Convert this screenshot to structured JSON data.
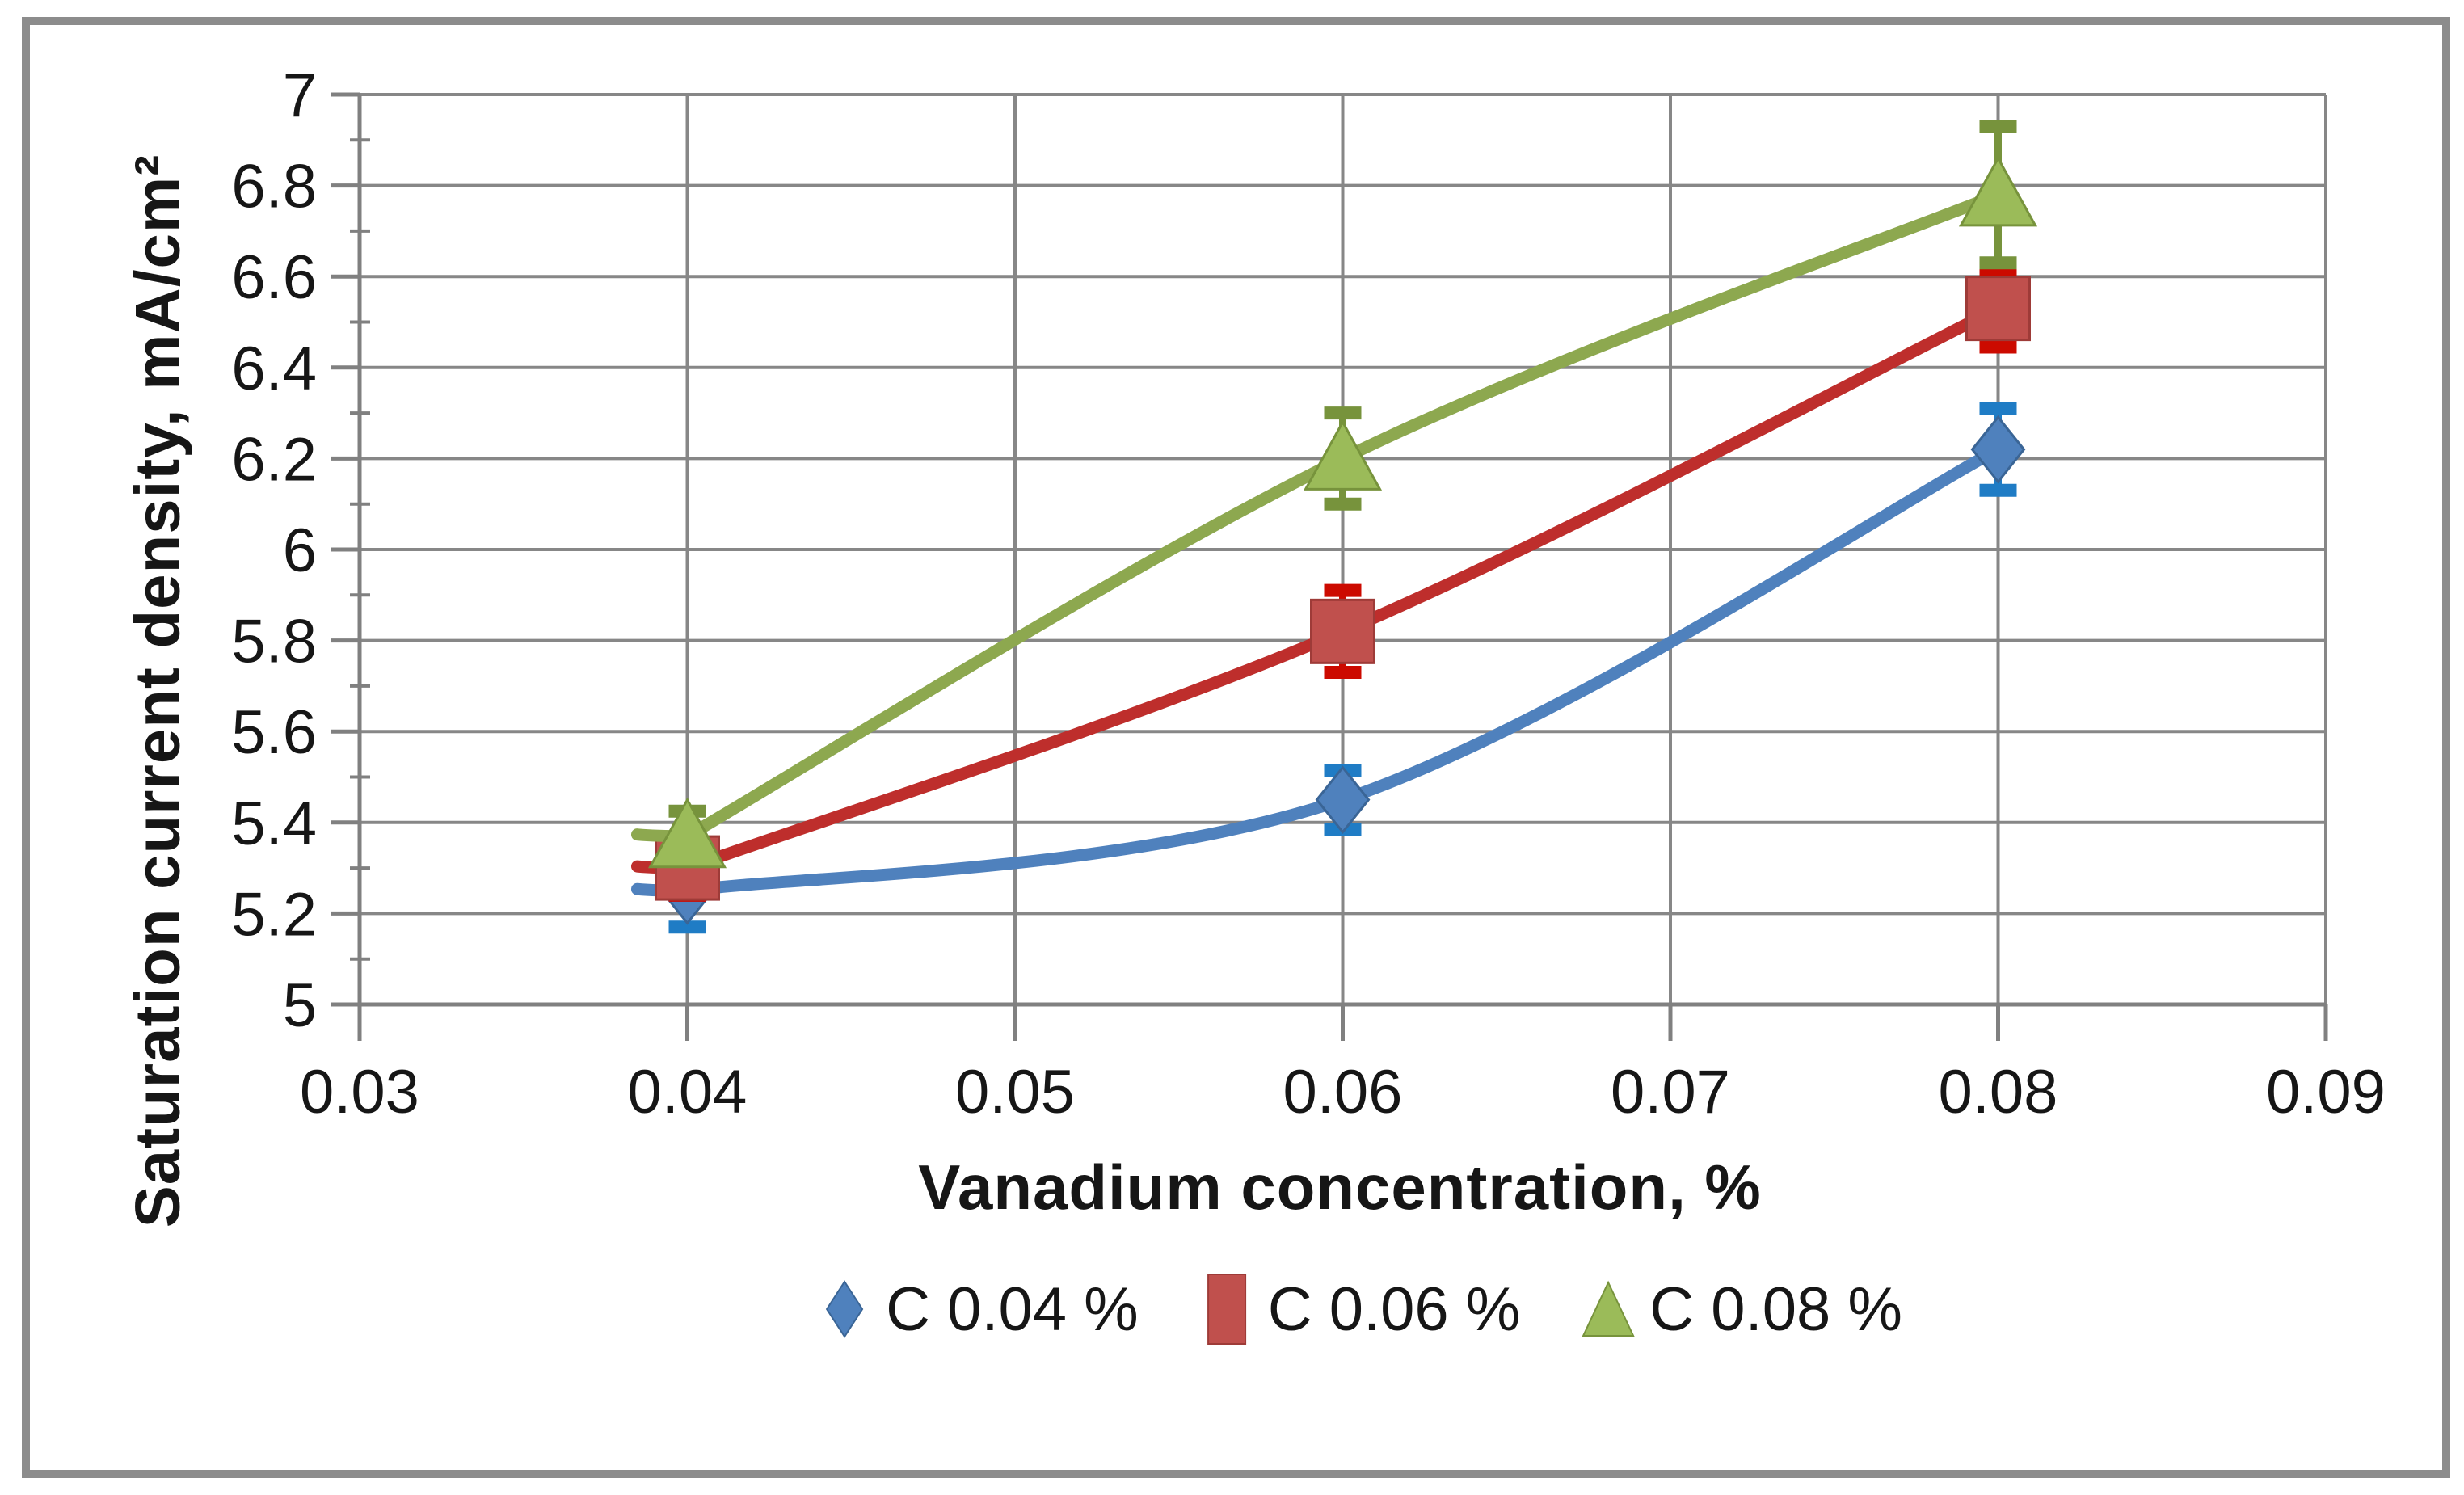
{
  "chart_data": {
    "type": "line",
    "title": "",
    "xlabel": "Vanadium concentration, %",
    "ylabel": "Saturation current density, mA/cm²",
    "xlim": [
      0.03,
      0.09
    ],
    "ylim": [
      5,
      7
    ],
    "x_tick_labels": [
      "0.03",
      "0.04",
      "0.05",
      "0.06",
      "0.07",
      "0.08",
      "0.09"
    ],
    "x_tick_values": [
      0.03,
      0.04,
      0.05,
      0.06,
      0.07,
      0.08,
      0.09
    ],
    "y_tick_labels": [
      "7",
      "6.8",
      "6.6",
      "6.4",
      "6.2",
      "6",
      "5.8",
      "5.6",
      "5.4",
      "5.2",
      "5"
    ],
    "y_tick_values": [
      7,
      6.8,
      6.6,
      6.4,
      6.2,
      6,
      5.8,
      5.6,
      5.4,
      5.2,
      5
    ],
    "y_minor_tick_step": 0.1,
    "grid": true,
    "legend_position": "bottom",
    "x": [
      0.04,
      0.06,
      0.08
    ],
    "series": [
      {
        "name": "C 0.04 %",
        "marker": "diamond",
        "line_color": "#4F81BD",
        "marker_color": "#4F81BD",
        "marker_edge": "#3A6596",
        "error_color": "#1F7CC5",
        "values": [
          5.25,
          5.45,
          6.22
        ],
        "errors": [
          0.08,
          0.065,
          0.09
        ]
      },
      {
        "name": "C 0.06 %",
        "marker": "square",
        "line_color": "#BE2E2C",
        "marker_color": "#C0504D",
        "marker_edge": "#9E3B38",
        "error_color": "#CC0A00",
        "values": [
          5.3,
          5.82,
          6.53
        ],
        "errors": [
          0.06,
          0.09,
          0.085
        ]
      },
      {
        "name": "C 0.08 %",
        "marker": "triangle",
        "line_color": "#8DA84F",
        "marker_color": "#9BBB59",
        "marker_edge": "#77933C",
        "error_color": "#77933C",
        "values": [
          5.37,
          6.2,
          6.78
        ],
        "errors": [
          0.055,
          0.1,
          0.15
        ]
      }
    ]
  },
  "colors": {
    "background": "#ffffff",
    "border": "#8C8C8C",
    "gridline": "#878787",
    "axis": "#808080",
    "text": "#161616"
  }
}
